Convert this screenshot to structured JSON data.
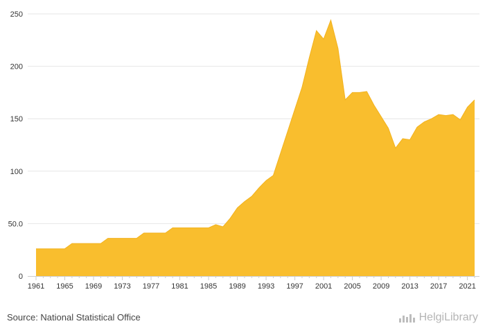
{
  "chart_data": {
    "type": "area",
    "title": "",
    "xlabel": "",
    "ylabel": "",
    "x": [
      1961,
      1962,
      1963,
      1964,
      1965,
      1966,
      1967,
      1968,
      1969,
      1970,
      1971,
      1972,
      1973,
      1974,
      1975,
      1976,
      1977,
      1978,
      1979,
      1980,
      1981,
      1982,
      1983,
      1984,
      1985,
      1986,
      1987,
      1988,
      1989,
      1990,
      1991,
      1992,
      1993,
      1994,
      1995,
      1996,
      1997,
      1998,
      1999,
      2000,
      2001,
      2002,
      2003,
      2004,
      2005,
      2006,
      2007,
      2008,
      2009,
      2010,
      2011,
      2012,
      2013,
      2014,
      2015,
      2016,
      2017,
      2018,
      2019,
      2020,
      2021,
      2022
    ],
    "series": [
      {
        "values": [
          26,
          26,
          26,
          26,
          26,
          31,
          31,
          31,
          31,
          31,
          36,
          36,
          36,
          36,
          36,
          41,
          41,
          41,
          41,
          46,
          46,
          46,
          46,
          46,
          46,
          49,
          47,
          55,
          65,
          71,
          76,
          84,
          91,
          96,
          117,
          138,
          159,
          180,
          208,
          234,
          226,
          244,
          217,
          168,
          175,
          175,
          176,
          163,
          152,
          141,
          122,
          131,
          130,
          142,
          147,
          150,
          154,
          153,
          154,
          149,
          161,
          168
        ]
      }
    ],
    "xticks": [
      "1961",
      "1965",
      "1969",
      "1973",
      "1977",
      "1981",
      "1985",
      "1989",
      "1993",
      "1997",
      "2001",
      "2005",
      "2009",
      "2013",
      "2017",
      "2021"
    ],
    "yticks": [
      0,
      50,
      100,
      150,
      200,
      250
    ],
    "ytick_labels": [
      "0",
      "50.0",
      "100",
      "150",
      "200",
      "250"
    ],
    "ylim": [
      0,
      250
    ],
    "grid": true,
    "legend": "none",
    "colors": {
      "fill": "#F9BE2E",
      "stroke": "#F2B21E",
      "grid": "#e6e6e6",
      "axis": "#cccccc"
    }
  },
  "footer": {
    "source": "Source: National Statistical Office",
    "brand": "HelgiLibrary",
    "brand_icon": "chart-bars-logo-icon"
  }
}
